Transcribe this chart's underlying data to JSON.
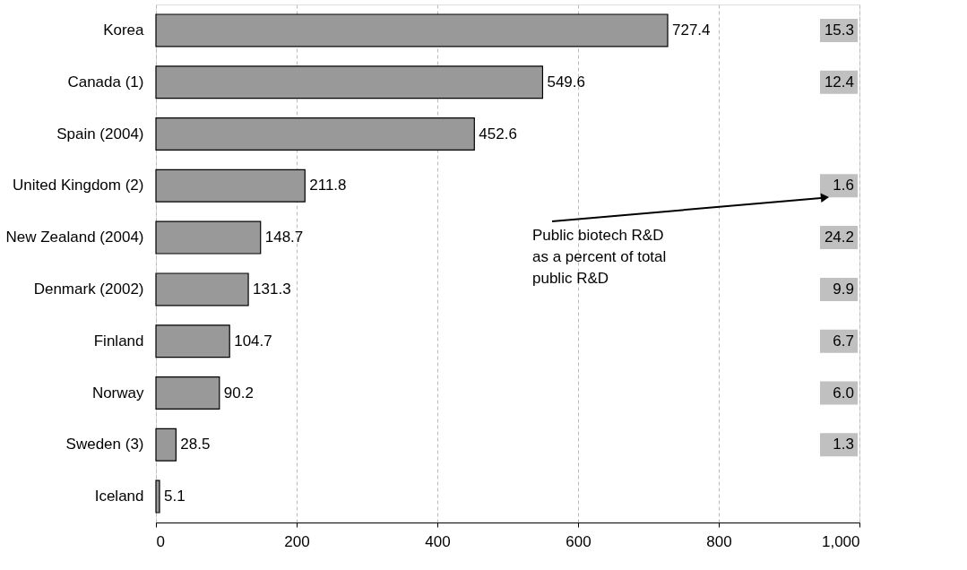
{
  "chart_data": {
    "type": "bar",
    "orientation": "horizontal",
    "categories": [
      "Korea",
      "Canada (1)",
      "Spain (2004)",
      "United Kingdom (2)",
      "New Zealand (2004)",
      "Denmark (2002)",
      "Finland",
      "Norway",
      "Sweden (3)",
      "Iceland"
    ],
    "values": [
      727.4,
      549.6,
      452.6,
      211.8,
      148.7,
      131.3,
      104.7,
      90.2,
      28.5,
      5.1
    ],
    "color": "#999999",
    "xlim": [
      0,
      1000
    ],
    "xticks": [
      0,
      200,
      400,
      600,
      800,
      {
        "value": 1000,
        "label": "1,000"
      }
    ],
    "grid": "x",
    "data_labels": true,
    "annotations": [
      "15.3",
      "12.4",
      "1.6",
      "24.2",
      "9.9",
      "6.7",
      "6.0",
      "1.3",
      "Public biotech R&D\nas a percent of total\npublic R&D"
    ]
  }
}
